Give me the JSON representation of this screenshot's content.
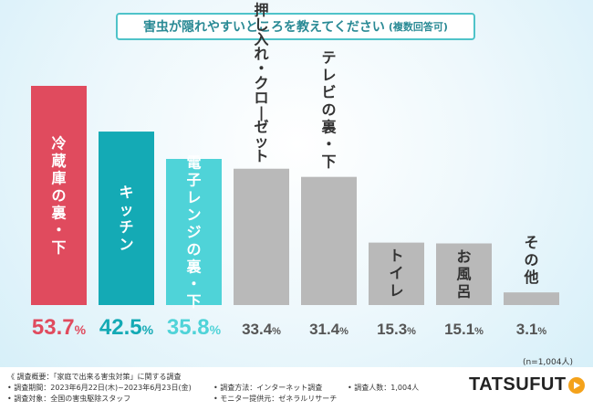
{
  "title": {
    "main": "害虫が隠れやすいところを教えてください",
    "sub": "(複数回答可)"
  },
  "n_label": "(n=1,004人)",
  "footer": {
    "summary": "《 調査概要：「家庭で出来る害虫対策」に関する調査",
    "period": "• 調査期間：2023年6月22日(木)~2023年6月23日(金)",
    "target": "• 調査対象：全国の害虫駆除スタッフ",
    "method": "• 調査方法：インターネット調査",
    "provider": "• モニター提供元：ゼネラルリサーチ",
    "people": "• 調査人数：1,004人"
  },
  "logo": {
    "part1": "TATSU",
    "part2": "FUT",
    "icon": "play-icon"
  },
  "colors": {
    "top1": "#e04b5e",
    "top2": "#14aab5",
    "top3": "#4fd3d8",
    "rest": "#b9b9b9"
  },
  "chart_data": {
    "type": "bar",
    "categories": [
      "冷蔵庫の裏・下",
      "キッチン",
      "電子レンジの裏・下",
      "押し入れ・クローゼット",
      "テレビの裏・下",
      "トイレ",
      "お風呂",
      "その他"
    ],
    "values": [
      53.7,
      42.5,
      35.8,
      33.4,
      31.4,
      15.3,
      15.1,
      3.1
    ],
    "value_labels": [
      "53.7%",
      "42.5%",
      "35.8%",
      "33.4%",
      "31.4%",
      "15.3%",
      "15.1%",
      "3.1%"
    ],
    "ylim": [
      0,
      60
    ],
    "unit": "%"
  }
}
